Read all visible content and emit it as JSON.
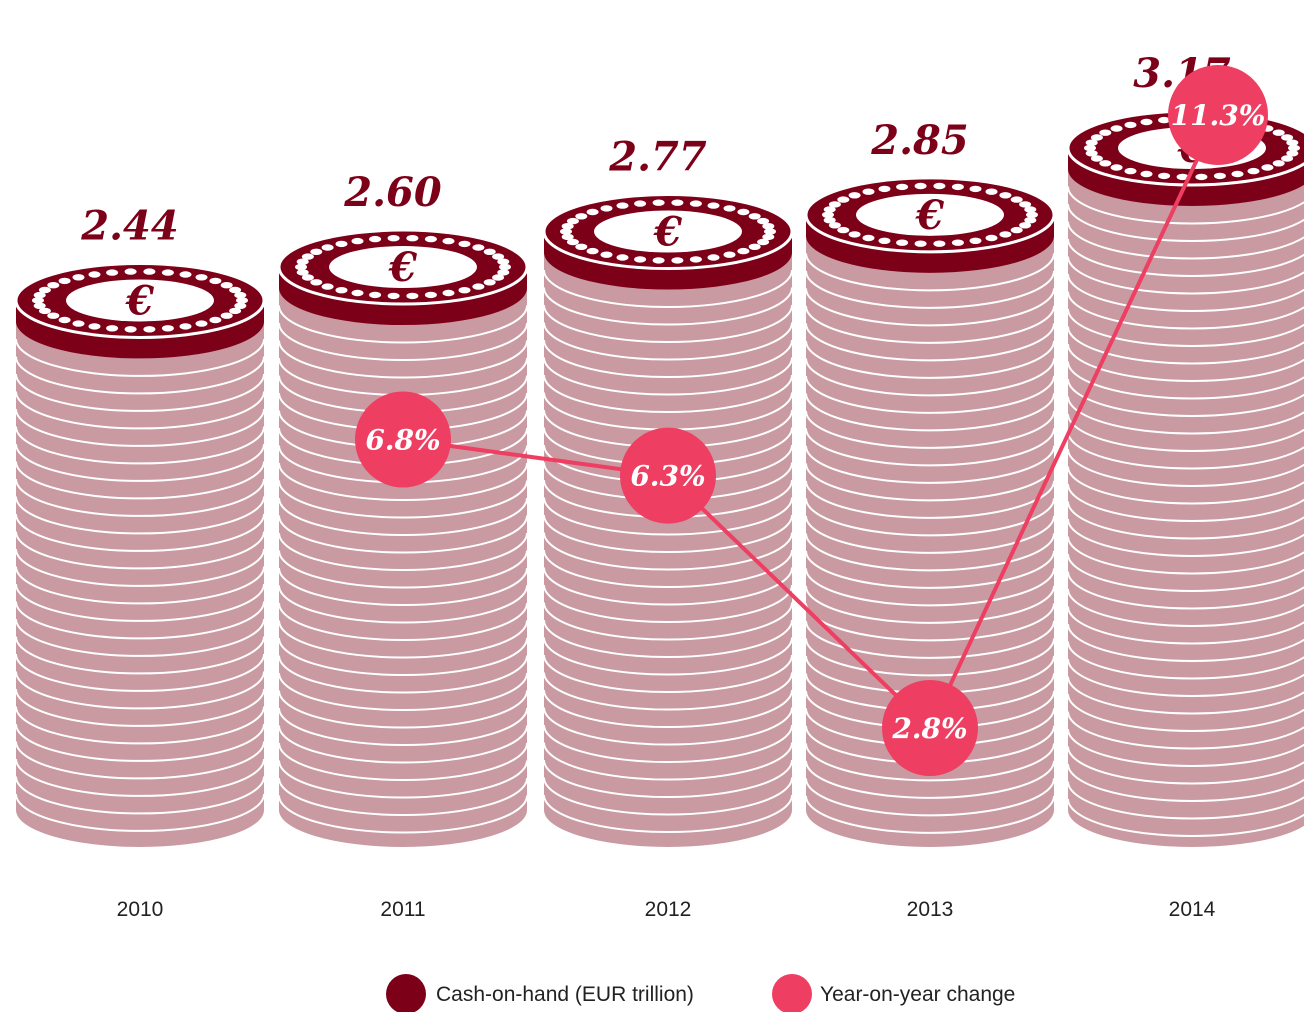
{
  "chart_data": {
    "type": "bar",
    "categories": [
      "2010",
      "2011",
      "2012",
      "2013",
      "2014"
    ],
    "series": [
      {
        "name": "Cash-on-hand (EUR trillion)",
        "values": [
          2.44,
          2.6,
          2.77,
          2.85,
          3.17
        ],
        "labels": [
          "2.44",
          "2.60",
          "2.77",
          "2.85",
          "3.17"
        ]
      },
      {
        "name": "Year-on-year change",
        "values": [
          null,
          6.8,
          6.3,
          2.8,
          11.3
        ],
        "labels": [
          "",
          "6.8%",
          "6.3%",
          "2.8%",
          "11.3%"
        ]
      }
    ],
    "coin_symbol": "€",
    "legend": {
      "position": "bottom",
      "items": [
        "Cash-on-hand (EUR trillion)",
        "Year-on-year change"
      ]
    },
    "colors": {
      "coin_top": "#7d0019",
      "coin_stack": "#c99aa2",
      "coin_line": "#ffffff",
      "change": "#ee3e62",
      "value_text": "#7d0019",
      "year_text": "#222222"
    }
  }
}
